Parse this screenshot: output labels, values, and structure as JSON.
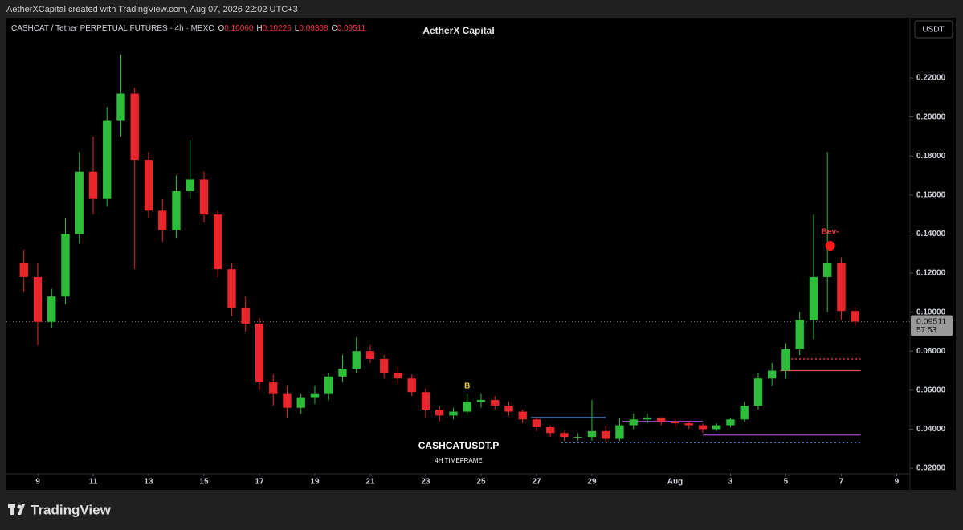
{
  "top_bar": "AetherXCapital created with TradingView.com, Aug 07, 2026 22:02 UTC+3",
  "brand": "TradingView",
  "chart_data": {
    "type": "candlestick",
    "title": "AetherX Capital",
    "symbol": "CASHCAT / Tether PERPETUAL FUTURES · 4h · MEXC",
    "ohlc_header": [
      {
        "key": "O",
        "text": "0.10060"
      },
      {
        "key": "H",
        "text": "0.10226"
      },
      {
        "key": "L",
        "text": "0.09308"
      },
      {
        "key": "C",
        "text": "0.09511"
      }
    ],
    "currency": "USDT",
    "watermark": "CASHCATUSDT.P",
    "watermark_sub": "4H TIMEFRAME",
    "last_price": {
      "value": 0.09511,
      "label": "0.09511",
      "countdown": "57:53",
      "color": "#9a9a9a"
    },
    "up_color": "#2ebd3a",
    "down_color": "#e8262c",
    "x": [
      -0.5,
      0,
      0.5,
      1,
      1.5,
      2,
      2.5,
      3,
      3.5,
      4,
      4.5,
      5,
      5.5,
      6,
      6.5,
      7,
      7.5,
      8,
      8.5,
      9,
      9.5,
      10,
      10.5,
      11,
      11.5,
      12,
      12.5,
      13,
      13.5,
      14,
      14.5,
      15,
      15.5,
      16,
      16.5,
      17,
      17.5,
      18,
      18.5,
      19,
      19.5,
      20,
      20.5,
      21,
      21.5,
      22,
      22.5,
      23,
      23.5,
      24,
      24.5,
      25,
      25.5,
      26,
      26.5,
      27,
      27.5,
      28,
      28.5,
      29,
      29.5
    ],
    "open": [
      0.125,
      0.118,
      0.095,
      0.108,
      0.14,
      0.172,
      0.158,
      0.198,
      0.212,
      0.178,
      0.152,
      0.142,
      0.162,
      0.168,
      0.15,
      0.122,
      0.102,
      0.094,
      0.064,
      0.058,
      0.051,
      0.056,
      0.058,
      0.067,
      0.071,
      0.08,
      0.076,
      0.069,
      0.066,
      0.059,
      0.05,
      0.047,
      0.049,
      0.054,
      0.055,
      0.052,
      0.049,
      0.045,
      0.041,
      0.038,
      0.036,
      0.036,
      0.039,
      0.035,
      0.042,
      0.045,
      0.046,
      0.044,
      0.043,
      0.042,
      0.04,
      0.042,
      0.045,
      0.052,
      0.066,
      0.07,
      0.081,
      0.096,
      0.118,
      0.125,
      0.1006
    ],
    "high": [
      0.132,
      0.125,
      0.112,
      0.148,
      0.182,
      0.19,
      0.205,
      0.232,
      0.215,
      0.182,
      0.158,
      0.17,
      0.188,
      0.172,
      0.152,
      0.125,
      0.108,
      0.097,
      0.068,
      0.062,
      0.058,
      0.062,
      0.069,
      0.078,
      0.087,
      0.083,
      0.078,
      0.072,
      0.068,
      0.061,
      0.052,
      0.051,
      0.058,
      0.058,
      0.057,
      0.054,
      0.05,
      0.046,
      0.042,
      0.039,
      0.038,
      0.055,
      0.042,
      0.046,
      0.048,
      0.048,
      0.046,
      0.045,
      0.044,
      0.043,
      0.043,
      0.046,
      0.054,
      0.069,
      0.074,
      0.084,
      0.1,
      0.15,
      0.182,
      0.128,
      0.10226
    ],
    "low": [
      0.11,
      0.083,
      0.092,
      0.104,
      0.135,
      0.15,
      0.154,
      0.19,
      0.122,
      0.148,
      0.136,
      0.138,
      0.158,
      0.146,
      0.118,
      0.098,
      0.09,
      0.06,
      0.052,
      0.046,
      0.048,
      0.053,
      0.055,
      0.064,
      0.069,
      0.074,
      0.066,
      0.063,
      0.057,
      0.046,
      0.044,
      0.045,
      0.047,
      0.051,
      0.05,
      0.047,
      0.043,
      0.039,
      0.036,
      0.034,
      0.034,
      0.034,
      0.033,
      0.034,
      0.04,
      0.043,
      0.042,
      0.041,
      0.04,
      0.038,
      0.039,
      0.041,
      0.044,
      0.05,
      0.062,
      0.066,
      0.078,
      0.086,
      0.1,
      0.096,
      0.09308
    ],
    "close": [
      0.118,
      0.095,
      0.108,
      0.14,
      0.172,
      0.158,
      0.198,
      0.212,
      0.178,
      0.152,
      0.142,
      0.162,
      0.168,
      0.15,
      0.122,
      0.102,
      0.094,
      0.064,
      0.058,
      0.051,
      0.056,
      0.058,
      0.067,
      0.071,
      0.08,
      0.076,
      0.069,
      0.066,
      0.059,
      0.05,
      0.047,
      0.049,
      0.054,
      0.055,
      0.052,
      0.049,
      0.045,
      0.041,
      0.038,
      0.036,
      0.036,
      0.039,
      0.035,
      0.042,
      0.045,
      0.046,
      0.044,
      0.043,
      0.042,
      0.04,
      0.042,
      0.045,
      0.052,
      0.066,
      0.07,
      0.081,
      0.096,
      0.118,
      0.125,
      0.1006,
      0.09511
    ],
    "xlim": [
      -1.13,
      31.48
    ],
    "ylim": [
      0.0163,
      0.2476
    ],
    "yticks": [
      {
        "value": 0.02,
        "label": "0.02000"
      },
      {
        "value": 0.04,
        "label": "0.04000"
      },
      {
        "value": 0.06,
        "label": "0.06000"
      },
      {
        "value": 0.08,
        "label": "0.08000"
      },
      {
        "value": 0.1,
        "label": "0.10000"
      },
      {
        "value": 0.12,
        "label": "0.12000"
      },
      {
        "value": 0.14,
        "label": "0.14000"
      },
      {
        "value": 0.16,
        "label": "0.16000"
      },
      {
        "value": 0.18,
        "label": "0.18000"
      },
      {
        "value": 0.2,
        "label": "0.20000"
      },
      {
        "value": 0.22,
        "label": "0.22000"
      }
    ],
    "xticks": [
      {
        "value": 0,
        "label": "9"
      },
      {
        "value": 2,
        "label": "11"
      },
      {
        "value": 4,
        "label": "13"
      },
      {
        "value": 6,
        "label": "15"
      },
      {
        "value": 8,
        "label": "17"
      },
      {
        "value": 10,
        "label": "19"
      },
      {
        "value": 12,
        "label": "21"
      },
      {
        "value": 14,
        "label": "23"
      },
      {
        "value": 16,
        "label": "25"
      },
      {
        "value": 18,
        "label": "27"
      },
      {
        "value": 20,
        "label": "29"
      },
      {
        "value": 23,
        "label": "Aug"
      },
      {
        "value": 25,
        "label": "3"
      },
      {
        "value": 27,
        "label": "5"
      },
      {
        "value": 29,
        "label": "7"
      },
      {
        "value": 31,
        "label": "9"
      }
    ],
    "grid": false,
    "levels": [
      {
        "value": 0.076,
        "x": [
          26.9,
          29.7
        ],
        "color": "#f23645",
        "style": "dotted"
      },
      {
        "value": 0.07,
        "x": [
          26.8,
          29.7
        ],
        "color": "#e05555",
        "style": "solid"
      },
      {
        "value": 0.046,
        "x": [
          17.8,
          20.5
        ],
        "color": "#3d6fb6",
        "style": "solid"
      },
      {
        "value": 0.044,
        "x": [
          21.1,
          24.0
        ],
        "color": "#9c3fbf",
        "style": "solid"
      },
      {
        "value": 0.037,
        "x": [
          24.0,
          29.7
        ],
        "color": "#9c3fbf",
        "style": "solid"
      },
      {
        "value": 0.033,
        "x": [
          18.9,
          29.7
        ],
        "color": "#4a78c8",
        "style": "dotted"
      }
    ],
    "annotations": [
      {
        "text": "Bev-",
        "x": 28.6,
        "y": 0.141,
        "color": "#f23645"
      },
      {
        "text": "B",
        "x": 15.5,
        "y": 0.062,
        "color": "#f5d22c"
      }
    ],
    "signal": {
      "x": 28.6,
      "y": 0.134,
      "color": "#ff1a1a"
    }
  }
}
